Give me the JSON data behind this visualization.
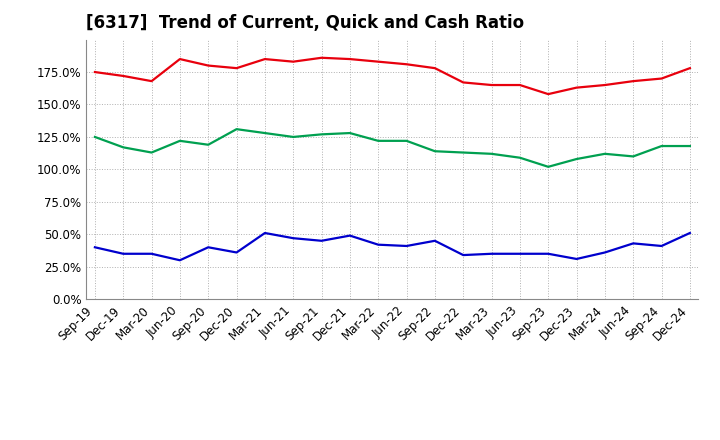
{
  "title": "[6317]  Trend of Current, Quick and Cash Ratio",
  "x_labels": [
    "Sep-19",
    "Dec-19",
    "Mar-20",
    "Jun-20",
    "Sep-20",
    "Dec-20",
    "Mar-21",
    "Jun-21",
    "Sep-21",
    "Dec-21",
    "Mar-22",
    "Jun-22",
    "Sep-22",
    "Dec-22",
    "Mar-23",
    "Jun-23",
    "Sep-23",
    "Dec-23",
    "Mar-24",
    "Jun-24",
    "Sep-24",
    "Dec-24"
  ],
  "current_ratio": [
    175.0,
    172.0,
    168.0,
    185.0,
    180.0,
    178.0,
    185.0,
    183.0,
    186.0,
    185.0,
    183.0,
    181.0,
    178.0,
    167.0,
    165.0,
    165.0,
    158.0,
    163.0,
    165.0,
    168.0,
    170.0,
    178.0
  ],
  "quick_ratio": [
    125.0,
    117.0,
    113.0,
    122.0,
    119.0,
    131.0,
    128.0,
    125.0,
    127.0,
    128.0,
    122.0,
    122.0,
    114.0,
    113.0,
    112.0,
    109.0,
    102.0,
    108.0,
    112.0,
    110.0,
    118.0,
    118.0
  ],
  "cash_ratio": [
    40.0,
    35.0,
    35.0,
    30.0,
    40.0,
    36.0,
    51.0,
    47.0,
    45.0,
    49.0,
    42.0,
    41.0,
    45.0,
    34.0,
    35.0,
    35.0,
    35.0,
    31.0,
    36.0,
    43.0,
    41.0,
    51.0
  ],
  "current_color": "#e8000d",
  "quick_color": "#00a050",
  "cash_color": "#0000cd",
  "ylim": [
    0.0,
    200.0
  ],
  "yticks": [
    0.0,
    25.0,
    50.0,
    75.0,
    100.0,
    125.0,
    150.0,
    175.0
  ],
  "background_color": "#ffffff",
  "grid_color": "#b0b0b0",
  "title_fontsize": 12,
  "legend_fontsize": 9,
  "tick_fontsize": 8.5
}
